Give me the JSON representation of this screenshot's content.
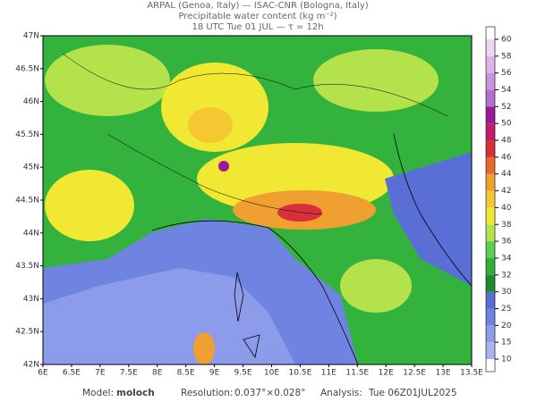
{
  "header": {
    "line1": "ARPAL (Genoa, Italy)  —  ISAC-CNR (Bologna, Italy)",
    "line2": "Precipitable water content (kg m⁻²)",
    "line3": "18 UTC Tue 01 JUL  —  τ = 12h"
  },
  "map": {
    "lat_labels": [
      "47N",
      "46.5N",
      "46N",
      "45.5N",
      "45N",
      "44.5N",
      "44N",
      "43.5N",
      "43N",
      "42.5N",
      "42N"
    ],
    "lon_labels": [
      "6E",
      "6.5E",
      "7E",
      "7.5E",
      "8E",
      "8.5E",
      "9E",
      "9.5E",
      "10E",
      "10.5E",
      "11E",
      "11.5E",
      "12E",
      "12.5E",
      "13E",
      "13.5E"
    ]
  },
  "colorbar": {
    "ticks": [
      10,
      15,
      20,
      25,
      30,
      32,
      34,
      36,
      38,
      40,
      42,
      44,
      46,
      48,
      50,
      52,
      54,
      56,
      58,
      60
    ],
    "colors": [
      "#a9b4f0",
      "#8c9cea",
      "#6f84e0",
      "#5a6fd6",
      "#1f8a2a",
      "#2fae3a",
      "#5ccf52",
      "#b4e24a",
      "#f0e832",
      "#f5c832",
      "#f0a030",
      "#e86a2a",
      "#d8303a",
      "#c01c70",
      "#9a1a9c",
      "#b46ed0",
      "#c896dc",
      "#dcb4e6",
      "#ecd6f2"
    ]
  },
  "footer": {
    "model_label": "Model:",
    "model": "moloch",
    "res_label": "Resolution:",
    "resolution": "0.037°×0.028°",
    "analysis_label": "Analysis:",
    "analysis": "Tue 06Z01JUL2025"
  }
}
